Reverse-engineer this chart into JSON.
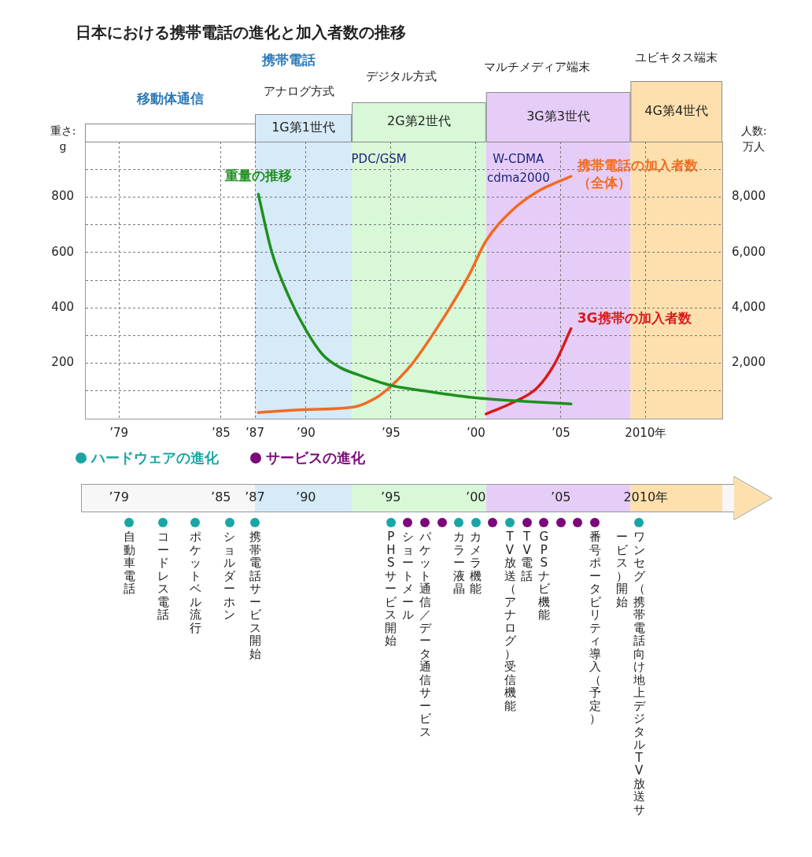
{
  "chart_data": [
    {
      "type": "line",
      "title": "日本における携帯電話の進化と加入者数の推移",
      "ylabel": "重さ: g",
      "y2label": "人数: 万人",
      "xlim": [
        1977,
        2014.5
      ],
      "xticks": [
        {
          "value": 1979,
          "label": "’79"
        },
        {
          "value": 1985,
          "label": "’85"
        },
        {
          "value": 1987,
          "label": "’87"
        },
        {
          "value": 1990,
          "label": "’90"
        },
        {
          "value": 1995,
          "label": "’95"
        },
        {
          "value": 2000,
          "label": "’00"
        },
        {
          "value": 2005,
          "label": "’05"
        },
        {
          "value": 2010,
          "label": "2010年"
        }
      ],
      "ylim": [
        0,
        1000
      ],
      "yticks": [
        {
          "value": 100,
          "label": null
        },
        200,
        {
          "value": 300,
          "label": null
        },
        400,
        {
          "value": 500,
          "label": null
        },
        600,
        {
          "value": 700,
          "label": null
        },
        800,
        {
          "value": 900,
          "label": null
        }
      ],
      "y2lim": [
        0,
        10000
      ],
      "y2ticks": [
        {
          "value": 2000,
          "label": "2,000"
        },
        {
          "value": 4000,
          "label": "4,000"
        },
        {
          "value": 6000,
          "label": "6,000"
        },
        {
          "value": 8000,
          "label": "8,000"
        }
      ],
      "grid": true,
      "legend": false,
      "marker": "none",
      "line_style": "solid",
      "series": [
        {
          "name": "重量の推移",
          "color": "#1f8f1f",
          "x": [
            1987.2,
            1988,
            1989,
            1990,
            1991,
            1992,
            1993,
            1995,
            1997,
            2000,
            2003,
            2005.6
          ],
          "values": [
            810,
            600,
            440,
            320,
            230,
            185,
            160,
            120,
            100,
            75,
            62,
            53
          ]
        },
        {
          "name": "携帯電話の加入者数（全体）",
          "color": "#f26b21",
          "axis": "y2",
          "x": [
            1987.2,
            1990,
            1992.8,
            1994.2,
            1995,
            1996.2,
            1998.1,
            1999.6,
            2000.6,
            2002.1,
            2003.6,
            2005.6
          ],
          "values": [
            220,
            330,
            420,
            780,
            1170,
            1940,
            3640,
            5190,
            6420,
            7500,
            8190,
            8750
          ]
        },
        {
          "name": "3G携帯の加入者数",
          "color": "#d91a1a",
          "axis": "y2",
          "x": [
            2000.6,
            2002.1,
            2003.6,
            2004.6,
            2005.6
          ],
          "values": [
            170,
            560,
            1110,
            1940,
            3250
          ]
        }
      ],
      "bands": [
        {
          "axis": "x",
          "from": 1987,
          "to": 1992.7,
          "label": "1G第1世代",
          "color": "#d6eaf8"
        },
        {
          "axis": "x",
          "from": 1992.7,
          "to": 2000.6,
          "label": "2G第2世代",
          "color": "#d8f8d8"
        },
        {
          "axis": "x",
          "from": 2000.6,
          "to": 2009.1,
          "label": "3G第3世代",
          "color": "#e6cdf7"
        },
        {
          "axis": "x",
          "from": 2009.1,
          "to": 2014.5,
          "label": "4G第4世代",
          "color": "#fde0ae"
        }
      ],
      "annotations": [
        "移動体通信",
        "携帯電話",
        "アナログ方式",
        "デジタル方式",
        "マルチメディア端末",
        "ユビキタス端末",
        "PDC/GSM",
        "W-CDMA",
        "cdma2000"
      ]
    },
    {
      "type": "other",
      "annotations": [
        "ハードウェアの進化",
        "サービスの進化",
        "’79",
        "’85",
        "’87",
        "’90",
        "’95",
        "’00",
        "’05",
        "2010年"
      ],
      "categories": [
        "自動車電話",
        "コードレス電話",
        "ポケットベル流行",
        "ショルダーホン",
        "携帯電話サービス開始",
        "PHSサービス開始",
        "ショートメール",
        "パケット通信／データ通信サービス",
        null,
        "カラー液晶",
        "カメラ機能",
        null,
        "TV放送（アナログ）受信機能",
        "TV電話",
        "GPSナビ機能",
        null,
        null,
        "番号ポータビリティ導入（予定）",
        "ワンセグ（携帯電話向け地上デジタルTV放送サービス）開始"
      ],
      "colors": [
        "#1aa5a5",
        "#1aa5a5",
        "#1aa5a5",
        "#1aa5a5",
        "#1aa5a5",
        "#1aa5a5",
        "#7a0a7a",
        "#7a0a7a",
        "#7a0a7a",
        "#1aa5a5",
        "#1aa5a5",
        "#7a0a7a",
        "#1aa5a5",
        "#7a0a7a",
        "#7a0a7a",
        "#7a0a7a",
        "#7a0a7a",
        "#7a0a7a",
        "#1aa5a5"
      ]
    }
  ]
}
